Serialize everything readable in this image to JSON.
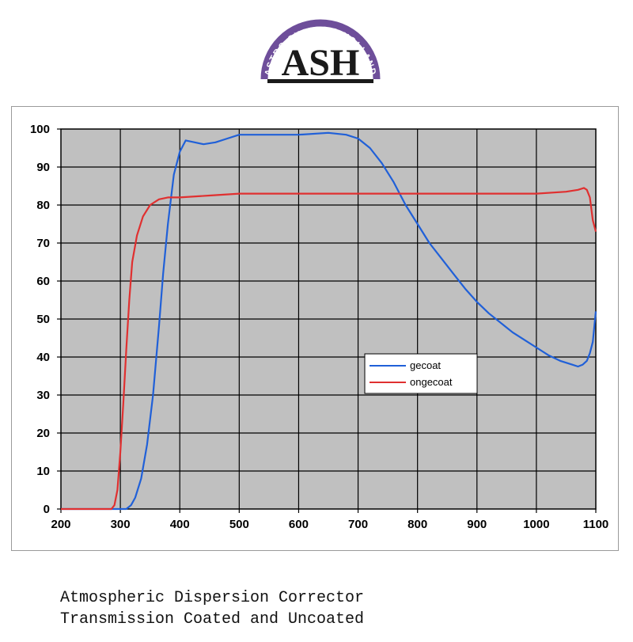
{
  "logo": {
    "arc_text": "ASTRO SYSTEMS HOLLAND",
    "mark_text": "ASH",
    "colors": {
      "arc": "#6e4e9a",
      "mark": "#1a1a1a"
    }
  },
  "caption": {
    "line1": "Atmospheric Dispersion Corrector",
    "line2": "Transmission Coated and Uncoated"
  },
  "colors": {
    "plot_background": "#c0c0c0",
    "gridline": "#000000",
    "gecoat": "#2060d8",
    "ongecoat": "#e03030"
  },
  "chart_data": {
    "type": "line",
    "title": "",
    "xlabel": "",
    "ylabel": "",
    "xlim": [
      200,
      1100
    ],
    "ylim": [
      0,
      100
    ],
    "xticks": [
      200,
      300,
      400,
      500,
      600,
      700,
      800,
      900,
      1000,
      1100
    ],
    "yticks": [
      0,
      10,
      20,
      30,
      40,
      50,
      60,
      70,
      80,
      90,
      100
    ],
    "grid": true,
    "legend_position": "center-right",
    "series": [
      {
        "name": "gecoat",
        "color": "#2060d8",
        "points": [
          [
            200,
            0
          ],
          [
            310,
            0
          ],
          [
            318,
            1
          ],
          [
            325,
            3
          ],
          [
            335,
            8
          ],
          [
            345,
            17
          ],
          [
            355,
            30
          ],
          [
            365,
            48
          ],
          [
            372,
            62
          ],
          [
            380,
            75
          ],
          [
            390,
            88
          ],
          [
            400,
            94
          ],
          [
            410,
            97
          ],
          [
            425,
            96.5
          ],
          [
            440,
            96
          ],
          [
            460,
            96.5
          ],
          [
            480,
            97.5
          ],
          [
            500,
            98.5
          ],
          [
            550,
            98.5
          ],
          [
            600,
            98.5
          ],
          [
            650,
            99
          ],
          [
            680,
            98.5
          ],
          [
            700,
            97.5
          ],
          [
            720,
            95
          ],
          [
            740,
            91
          ],
          [
            760,
            86
          ],
          [
            780,
            80
          ],
          [
            800,
            75
          ],
          [
            820,
            70
          ],
          [
            840,
            66
          ],
          [
            860,
            62
          ],
          [
            880,
            58
          ],
          [
            900,
            54.5
          ],
          [
            920,
            51.5
          ],
          [
            940,
            49
          ],
          [
            960,
            46.5
          ],
          [
            980,
            44.5
          ],
          [
            1000,
            42.5
          ],
          [
            1020,
            40.5
          ],
          [
            1040,
            39
          ],
          [
            1060,
            38
          ],
          [
            1070,
            37.5
          ],
          [
            1078,
            38
          ],
          [
            1085,
            39
          ],
          [
            1090,
            41
          ],
          [
            1095,
            44
          ],
          [
            1100,
            52
          ]
        ]
      },
      {
        "name": "ongecoat",
        "color": "#e03030",
        "points": [
          [
            200,
            0
          ],
          [
            285,
            0
          ],
          [
            290,
            1
          ],
          [
            295,
            5
          ],
          [
            300,
            15
          ],
          [
            305,
            28
          ],
          [
            310,
            42
          ],
          [
            315,
            55
          ],
          [
            320,
            65
          ],
          [
            328,
            72
          ],
          [
            338,
            77
          ],
          [
            350,
            80
          ],
          [
            365,
            81.5
          ],
          [
            380,
            82
          ],
          [
            400,
            82
          ],
          [
            450,
            82.5
          ],
          [
            500,
            83
          ],
          [
            600,
            83
          ],
          [
            700,
            83
          ],
          [
            800,
            83
          ],
          [
            900,
            83
          ],
          [
            1000,
            83
          ],
          [
            1050,
            83.5
          ],
          [
            1070,
            84
          ],
          [
            1080,
            84.5
          ],
          [
            1085,
            84
          ],
          [
            1090,
            82
          ],
          [
            1095,
            76
          ],
          [
            1100,
            73
          ]
        ]
      }
    ]
  }
}
